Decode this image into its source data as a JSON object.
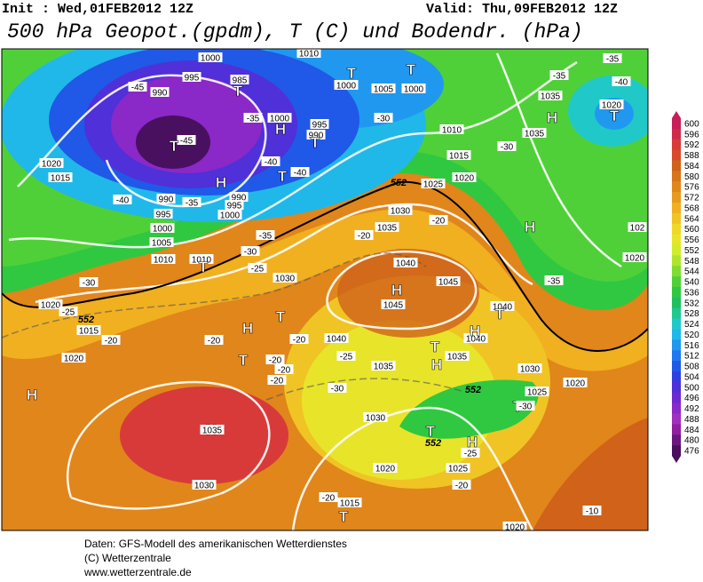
{
  "header": {
    "init": "Init : Wed,01FEB2012 12Z",
    "valid": "Valid: Thu,09FEB2012 12Z",
    "title": "500 hPa Geopot.(gpdm), T (C) und Bodendr. (hPa)"
  },
  "colorbar": {
    "levels": [
      600,
      596,
      592,
      588,
      584,
      580,
      576,
      572,
      568,
      564,
      560,
      556,
      552,
      548,
      544,
      540,
      536,
      532,
      528,
      524,
      520,
      516,
      512,
      508,
      504,
      500,
      496,
      492,
      488,
      484,
      480,
      476
    ],
    "colors": [
      "#c81e5a",
      "#d02a4a",
      "#d83a3a",
      "#d84a2a",
      "#d0621a",
      "#d8741a",
      "#e0861a",
      "#e89a1e",
      "#f0b020",
      "#f0c424",
      "#f0d828",
      "#e8e42a",
      "#d0ec2c",
      "#b0e42c",
      "#80dc30",
      "#50d038",
      "#30c840",
      "#20c060",
      "#20c890",
      "#20c8c8",
      "#20b8e8",
      "#2098f0",
      "#2078f0",
      "#2058e8",
      "#3040e0",
      "#5030d8",
      "#7028d0",
      "#8a28c8",
      "#a030c0",
      "#9020a0",
      "#6a1880",
      "#4a1060"
    ]
  },
  "map_labels": [
    "1000",
    "1010",
    "995",
    "985",
    "990",
    "-45",
    "T",
    "T",
    "T",
    "1000",
    "1005",
    "1000",
    "-35",
    "-35",
    "-40",
    "1035",
    "1020",
    "T",
    "H",
    "-35",
    "1000",
    "995",
    "990",
    "T",
    "H",
    "-45",
    "T",
    "1020",
    "1015",
    "-40",
    "-40",
    "T",
    "H",
    "990",
    "990",
    "-35",
    "995",
    "995",
    "1000",
    "-40",
    "1000",
    "1005",
    "1010",
    "1010",
    "T",
    "-35",
    "-30",
    "-25",
    "-30",
    "1030",
    "1025",
    "1020",
    "1030",
    "1035",
    "1040",
    "1045",
    "1045",
    "H",
    "-20",
    "-20",
    "1015",
    "-30",
    "1010",
    "1035",
    "-30",
    "H",
    "1020",
    "-25",
    "1015",
    "-20",
    "1020",
    "H",
    "H",
    "T",
    "T",
    "-20",
    "-20",
    "-20",
    "-20",
    "-20",
    "1040",
    "-25",
    "1035",
    "1040",
    "1035",
    "H",
    "H",
    "T",
    "1040",
    "T",
    "-30",
    "1030",
    "1030",
    "1025",
    "1020",
    "T",
    "-30",
    "H",
    "1035",
    "-25",
    "H",
    "T",
    "1020",
    "1025",
    "-20",
    "1030",
    "-20",
    "1015",
    "T",
    "1020",
    "-10",
    "1020",
    "102",
    "-35",
    "552",
    "552",
    "552",
    "552"
  ],
  "footer": [
    "Daten: GFS-Modell des amerikanischen Wetterdienstes",
    "(C) Wetterzentrale",
    "www.wetterzentrale.de"
  ]
}
